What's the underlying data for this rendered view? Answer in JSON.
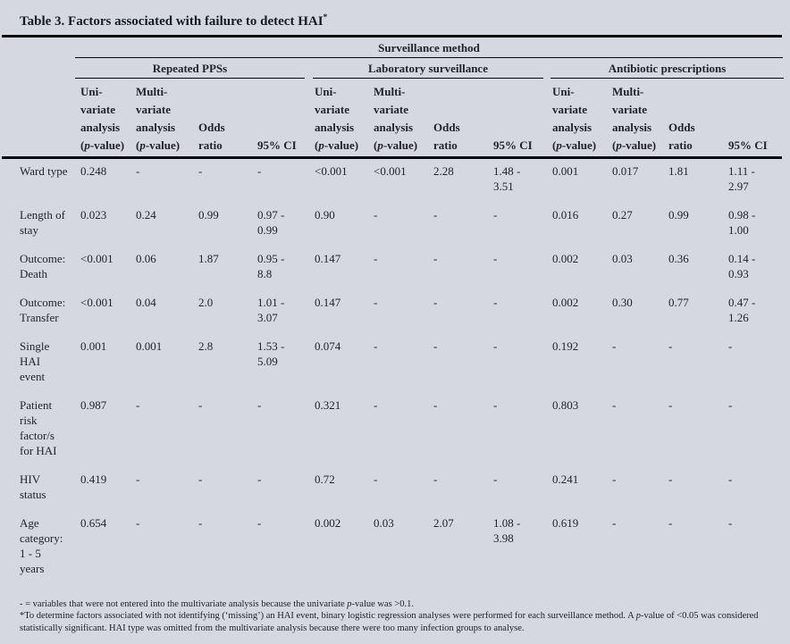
{
  "colors": {
    "background": "#d5d8e0",
    "text": "#21242c",
    "rule": "#07080c"
  },
  "title": {
    "text": "Table 3. Factors associated with failure to detect HAI",
    "superscript": "*"
  },
  "table": {
    "span_header": "Surveillance method",
    "groups": [
      "Repeated PPSs",
      "Laboratory surveillance",
      "Antibiotic prescriptions"
    ],
    "sub_headers": [
      [
        "Uni-",
        "variate",
        "analysis",
        "(p-value)"
      ],
      [
        "Multi-",
        "variate",
        "analysis",
        "(p-value)"
      ],
      [
        "Odds",
        "ratio"
      ],
      [
        "95% CI"
      ]
    ],
    "rows": [
      {
        "label": "Ward type",
        "values": [
          "0.248",
          "-",
          "-",
          "-",
          "<0.001",
          "<0.001",
          "2.28",
          "1.48 - 3.51",
          "0.001",
          "0.017",
          "1.81",
          "1.11 - 2.97"
        ]
      },
      {
        "label": "Length of stay",
        "values": [
          "0.023",
          "0.24",
          "0.99",
          "0.97 - 0.99",
          "0.90",
          "-",
          "-",
          "-",
          "0.016",
          "0.27",
          "0.99",
          "0.98 - 1.00"
        ]
      },
      {
        "label": "Outcome: Death",
        "values": [
          "<0.001",
          "0.06",
          "1.87",
          "0.95 - 8.8",
          "0.147",
          "-",
          "-",
          "-",
          "0.002",
          "0.03",
          "0.36",
          "0.14 - 0.93"
        ]
      },
      {
        "label": "Outcome: Transfer",
        "values": [
          "<0.001",
          "0.04",
          "2.0",
          "1.01 - 3.07",
          "0.147",
          "-",
          "-",
          "-",
          "0.002",
          "0.30",
          "0.77",
          "0.47 - 1.26"
        ]
      },
      {
        "label": "Single HAI event",
        "values": [
          "0.001",
          "0.001",
          "2.8",
          "1.53 - 5.09",
          "0.074",
          "-",
          "-",
          "-",
          "0.192",
          "-",
          "-",
          "-"
        ]
      },
      {
        "label": "Patient risk factor/s for HAI",
        "values": [
          "0.987",
          "-",
          "-",
          "-",
          "0.321",
          "-",
          "-",
          "-",
          "0.803",
          "-",
          "-",
          "-"
        ]
      },
      {
        "label": "HIV status",
        "values": [
          "0.419",
          "-",
          "-",
          "-",
          "0.72",
          "-",
          "-",
          "-",
          "0.241",
          "-",
          "-",
          "-"
        ]
      },
      {
        "label": "Age category: 1 - 5 years",
        "values": [
          "0.654",
          "-",
          "-",
          "-",
          "0.002",
          "0.03",
          "2.07",
          "1.08 - 3.98",
          "0.619",
          "-",
          "-",
          "-"
        ]
      }
    ]
  },
  "footnotes": [
    "- = variables that were not entered into the multivariate analysis because the univariate p-value was >0.1.",
    "*To determine factors associated with not identifying (‘missing’) an HAI event, binary logistic regression analyses were performed for each surveillance method. A p-value of <0.05 was considered statistically significant. HAI type was omitted from the multivariate analysis because there were too many infection groups to analyse."
  ]
}
